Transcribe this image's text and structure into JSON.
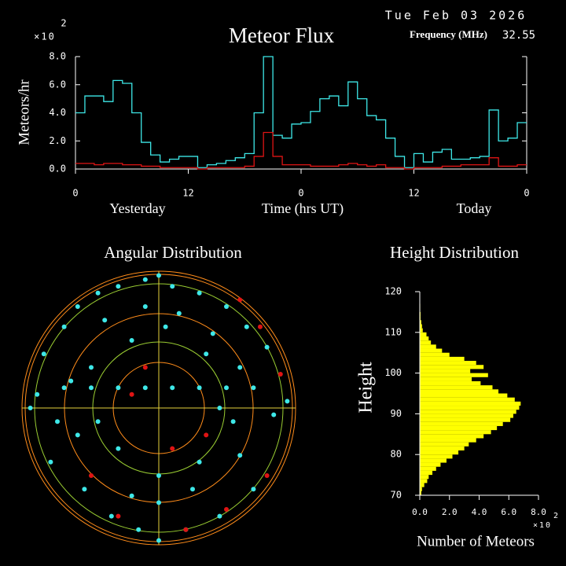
{
  "header": {
    "date": "Tue Feb 03 2026",
    "frequency_label": "Frequency (MHz)",
    "frequency": 32.55
  },
  "chart_data": [
    {
      "type": "line",
      "title": "Meteor Flux",
      "x_label": "Time (hrs UT)",
      "x_sublabels": [
        "Yesterday",
        "Today"
      ],
      "y_label": "Meteors/hr",
      "y_scale": {
        "base": "×10",
        "exponent": 2
      },
      "drawstyle": "steps",
      "x": [
        0,
        1,
        2,
        3,
        4,
        5,
        6,
        7,
        8,
        9,
        10,
        11,
        12,
        13,
        14,
        15,
        16,
        17,
        18,
        19,
        20,
        21,
        22,
        23,
        24,
        25,
        26,
        27,
        28,
        29,
        30,
        31,
        32,
        33,
        34,
        35,
        36,
        37,
        38,
        39,
        40,
        41,
        42,
        43,
        44,
        45,
        46,
        47
      ],
      "series": [
        {
          "color": "#3ee8e8",
          "values": [
            4.0,
            5.2,
            5.2,
            4.8,
            6.3,
            6.1,
            4.0,
            1.9,
            1.0,
            0.5,
            0.7,
            0.9,
            0.9,
            0.1,
            0.3,
            0.4,
            0.6,
            0.8,
            1.1,
            4.0,
            8.0,
            2.4,
            2.2,
            3.2,
            3.3,
            4.1,
            5.0,
            5.2,
            4.5,
            6.2,
            5.0,
            3.8,
            3.5,
            2.2,
            0.9,
            0.1,
            1.1,
            0.5,
            1.2,
            1.4,
            0.7,
            0.7,
            0.8,
            0.9,
            4.2,
            2.0,
            2.2,
            3.3
          ]
        },
        {
          "color": "#e01414",
          "values": [
            0.4,
            0.4,
            0.3,
            0.4,
            0.4,
            0.3,
            0.3,
            0.2,
            0.2,
            0.1,
            0.1,
            0.1,
            0.1,
            0.0,
            0.1,
            0.1,
            0.1,
            0.1,
            0.2,
            0.9,
            2.6,
            0.9,
            0.3,
            0.3,
            0.3,
            0.2,
            0.2,
            0.2,
            0.3,
            0.4,
            0.3,
            0.2,
            0.3,
            0.1,
            0.1,
            0.0,
            0.1,
            0.1,
            0.1,
            0.2,
            0.2,
            0.3,
            0.3,
            0.3,
            0.8,
            0.2,
            0.2,
            0.3
          ]
        }
      ],
      "xlim": [
        0,
        48
      ],
      "xticks": [
        0,
        12,
        {
          "value": 24,
          "label": "0"
        },
        {
          "value": 36,
          "label": "12"
        },
        {
          "value": 48,
          "label": "0"
        }
      ],
      "ylim": [
        0,
        8
      ],
      "yticks": [
        {
          "value": 0,
          "label": "0.0"
        },
        {
          "value": 2,
          "label": "2.0"
        },
        {
          "value": 4,
          "label": "4.0"
        },
        {
          "value": 6,
          "label": "6.0"
        },
        {
          "value": 8,
          "label": "8.0"
        }
      ]
    },
    {
      "type": "scatter",
      "title": "Angular Distribution",
      "xlim": [
        -1,
        1
      ],
      "ylim": [
        -1,
        1
      ],
      "series": [
        {
          "color": "#3ee8e8",
          "x": [
            -0.85,
            -0.7,
            -0.6,
            -0.45,
            -0.3,
            -0.1,
            0.1,
            0.3,
            0.5,
            0.65,
            0.8,
            -0.9,
            -0.75,
            -0.5,
            -0.2,
            0.05,
            0.35,
            0.6,
            0.85,
            -0.8,
            -0.55,
            -0.35,
            -0.15,
            0.2,
            0.45,
            0.7,
            -0.6,
            -0.3,
            0.0,
            0.3,
            0.55,
            -0.4,
            -0.1,
            0.15,
            0.4,
            -0.7,
            -0.5,
            -0.3,
            -0.1,
            0.1,
            0.3,
            0.5,
            0.7,
            -0.2,
            0.25,
            -0.65,
            0.6,
            -0.45,
            0.45,
            0.0,
            -0.95,
            0.95,
            0.0,
            0.0
          ],
          "y": [
            0.4,
            0.6,
            0.75,
            0.85,
            0.9,
            0.95,
            0.9,
            0.85,
            0.75,
            0.6,
            0.45,
            0.1,
            -0.1,
            0.3,
            0.5,
            0.6,
            0.4,
            0.3,
            -0.05,
            -0.4,
            -0.6,
            -0.8,
            -0.9,
            -0.9,
            -0.8,
            -0.6,
            -0.2,
            -0.3,
            -0.5,
            -0.4,
            -0.1,
            0.65,
            0.75,
            0.7,
            0.55,
            0.15,
            0.15,
            0.15,
            0.15,
            0.15,
            0.15,
            0.15,
            0.15,
            -0.65,
            -0.6,
            0.2,
            -0.35,
            -0.1,
            0.0,
            -0.7,
            0.0,
            0.05,
            0.98,
            -0.98
          ]
        },
        {
          "color": "#e01414",
          "x": [
            0.6,
            0.75,
            -0.3,
            0.1,
            -0.1,
            0.5,
            -0.5,
            0.2,
            0.8,
            -0.2,
            0.35,
            0.9
          ],
          "y": [
            0.8,
            0.6,
            -0.8,
            -0.3,
            0.3,
            -0.75,
            -0.5,
            -0.9,
            -0.5,
            0.1,
            -0.2,
            0.25
          ]
        }
      ]
    },
    {
      "type": "histogram",
      "title": "Height Distribution",
      "orientation": "horizontal",
      "color": "#ffff00",
      "x_label": "Number of Meteors",
      "y_label": "Height",
      "x_scale": {
        "base": "×10",
        "exponent": 2
      },
      "bins": [
        70,
        71,
        72,
        73,
        74,
        75,
        76,
        77,
        78,
        79,
        80,
        81,
        82,
        83,
        84,
        85,
        86,
        87,
        88,
        89,
        90,
        91,
        92,
        93,
        94,
        95,
        96,
        97,
        98,
        99,
        100,
        101,
        102,
        103,
        104,
        105,
        106,
        107,
        108,
        109,
        110,
        111,
        112,
        113,
        114,
        115,
        116,
        117,
        118,
        119,
        120
      ],
      "counts": [
        0.1,
        0.15,
        0.3,
        0.5,
        0.6,
        0.85,
        1.1,
        1.4,
        1.8,
        2.2,
        2.6,
        3.0,
        3.3,
        3.8,
        4.3,
        4.8,
        5.2,
        5.6,
        6.1,
        6.3,
        6.5,
        6.7,
        6.8,
        6.4,
        5.9,
        5.3,
        4.9,
        4.1,
        3.5,
        4.6,
        3.4,
        4.3,
        3.8,
        3.0,
        2.0,
        1.5,
        1.1,
        0.75,
        0.6,
        0.45,
        0.2,
        0.15,
        0.1,
        0.05,
        0.05,
        0.03,
        0.03,
        0.02,
        0.02,
        0.01
      ],
      "xlim": [
        0,
        8
      ],
      "xticks": [
        {
          "value": 0,
          "label": "0.0"
        },
        {
          "value": 2,
          "label": "2.0"
        },
        {
          "value": 4,
          "label": "4.0"
        },
        {
          "value": 6,
          "label": "6.0"
        },
        {
          "value": 8,
          "label": "8.0"
        }
      ],
      "ylim": [
        70,
        120
      ],
      "yticks": [
        70,
        80,
        90,
        100,
        110,
        120
      ]
    }
  ]
}
